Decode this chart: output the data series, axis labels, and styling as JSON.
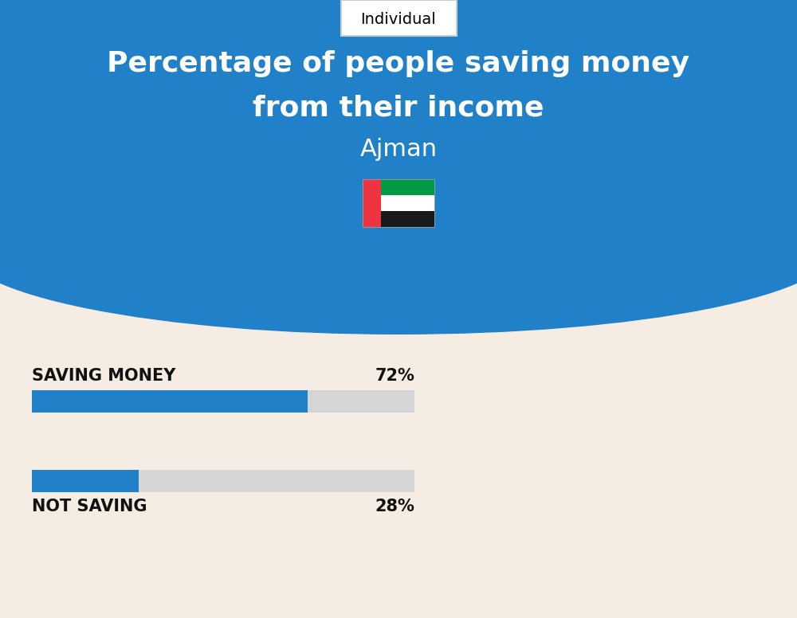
{
  "title_line1": "Percentage of people saving money",
  "title_line2": "from their income",
  "subtitle": "Ajman",
  "tab_label": "Individual",
  "bg_color": "#F5EDE3",
  "header_color": "#2080C8",
  "bar_color": "#2080C8",
  "bar_bg_color": "#D5D5D5",
  "categories": [
    "SAVING MONEY",
    "NOT SAVING"
  ],
  "values": [
    72,
    28
  ],
  "text_color": "#111111",
  "title_color": "#FFFFFF",
  "subtitle_color": "#FFFFFF",
  "figsize": [
    10.0,
    7.76
  ],
  "dpi": 100
}
